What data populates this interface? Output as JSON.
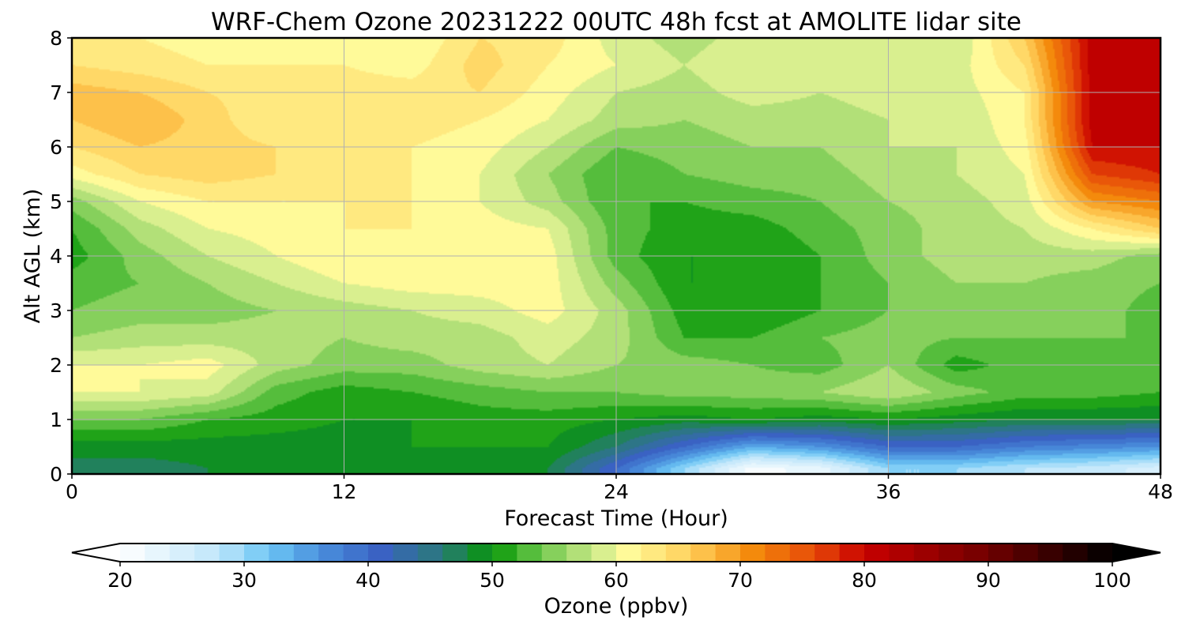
{
  "chart_data": {
    "type": "heatmap",
    "title": "WRF-Chem Ozone  20231222 00UTC 48h fcst at AMOLITE lidar site",
    "xlabel": "Forecast Time (Hour)",
    "ylabel": "Alt AGL (km)",
    "xlim": [
      0,
      48
    ],
    "ylim": [
      0,
      8
    ],
    "x_ticks": [
      0,
      12,
      24,
      36,
      48
    ],
    "y_ticks": [
      0,
      1,
      2,
      3,
      4,
      5,
      6,
      7,
      8
    ],
    "grid": true,
    "x": [
      0,
      3,
      6,
      9,
      12,
      15,
      18,
      21,
      24,
      27,
      30,
      33,
      36,
      39,
      42,
      45,
      48
    ],
    "y": [
      0.1,
      0.5,
      1,
      1.5,
      2,
      2.5,
      3,
      3.5,
      4,
      4.5,
      5,
      5.5,
      6,
      6.5,
      7,
      7.5,
      8
    ],
    "z": [
      [
        47,
        47,
        48,
        48,
        48,
        49,
        49,
        48,
        40,
        30,
        21,
        23,
        30,
        30,
        28,
        27,
        25
      ],
      [
        49,
        49,
        49,
        49,
        49,
        50,
        50,
        50,
        46,
        40,
        34,
        36,
        40,
        40,
        38,
        37,
        36
      ],
      [
        54,
        54,
        52,
        51,
        50,
        50,
        51,
        51,
        50,
        49,
        50,
        49,
        50,
        49,
        48,
        48,
        48
      ],
      [
        60,
        60,
        59,
        53,
        51,
        52,
        53,
        54,
        54,
        55,
        55,
        56,
        58,
        55,
        53,
        53,
        52
      ],
      [
        60,
        60,
        61,
        57,
        55,
        55,
        57,
        58,
        56,
        55,
        54,
        53,
        56,
        51,
        53,
        53,
        53
      ],
      [
        56,
        57,
        57,
        57,
        56,
        57,
        57,
        59,
        57,
        52,
        52,
        54,
        55,
        54,
        54,
        54,
        54
      ],
      [
        54,
        55,
        55,
        56,
        57,
        58,
        59,
        61,
        57,
        51,
        50,
        52,
        54,
        55,
        55,
        55,
        53
      ],
      [
        53,
        54,
        56,
        58,
        60,
        61,
        61,
        61,
        55,
        50,
        50,
        52,
        54,
        56,
        56,
        55,
        54
      ],
      [
        51,
        55,
        58,
        60,
        62,
        61,
        62,
        61,
        53,
        50,
        50,
        52,
        55,
        57,
        57,
        57,
        55
      ],
      [
        52,
        57,
        60,
        61,
        62,
        62,
        61,
        60,
        53,
        51,
        51,
        53,
        55,
        57,
        58,
        62,
        66
      ],
      [
        55,
        60,
        62,
        62,
        62,
        62,
        60,
        57,
        52,
        52,
        53,
        54,
        56,
        57,
        59,
        70,
        72
      ],
      [
        61,
        64,
        65,
        64,
        63,
        62,
        60,
        56,
        52,
        54,
        55,
        55,
        57,
        58,
        60,
        76,
        78
      ],
      [
        64,
        66,
        65,
        64,
        63,
        62,
        61,
        58,
        54,
        55,
        56,
        56,
        58,
        58,
        61,
        80,
        80
      ],
      [
        66,
        68,
        65,
        62,
        63,
        63,
        62,
        60,
        57,
        56,
        57,
        57,
        58,
        58,
        62,
        81,
        81
      ],
      [
        67,
        66,
        64,
        63,
        63,
        63,
        64,
        61,
        58,
        57,
        59,
        58,
        59,
        59,
        62,
        81,
        81
      ],
      [
        64,
        63,
        62,
        62,
        62,
        61,
        65,
        62,
        60,
        58,
        60,
        59,
        60,
        59,
        64,
        81,
        81
      ],
      [
        63,
        62,
        61,
        60,
        61,
        60,
        64,
        63,
        59,
        57,
        59,
        59,
        60,
        58,
        66,
        81,
        81
      ]
    ],
    "colorbar": {
      "label": "Ozone  (ppbv)",
      "min": 20,
      "max": 100,
      "step": 2,
      "ticks": [
        20,
        30,
        40,
        50,
        60,
        70,
        80,
        90,
        100
      ],
      "extend": "both",
      "colormap": [
        [
          20,
          "#ffffff"
        ],
        [
          28,
          "#bfe6fa"
        ],
        [
          32,
          "#6cc6f5"
        ],
        [
          36,
          "#4a90dd"
        ],
        [
          41,
          "#3a62c3"
        ],
        [
          46,
          "#2a7a78"
        ],
        [
          50,
          "#069606"
        ],
        [
          53,
          "#55bd3c"
        ],
        [
          56,
          "#9fd96c"
        ],
        [
          59,
          "#d9ef8f"
        ],
        [
          61,
          "#fffa99"
        ],
        [
          66,
          "#ffcf5a"
        ],
        [
          71,
          "#f48a0c"
        ],
        [
          76,
          "#e64a08"
        ],
        [
          80,
          "#c80000"
        ],
        [
          90,
          "#700000"
        ],
        [
          100,
          "#000000"
        ]
      ]
    }
  }
}
